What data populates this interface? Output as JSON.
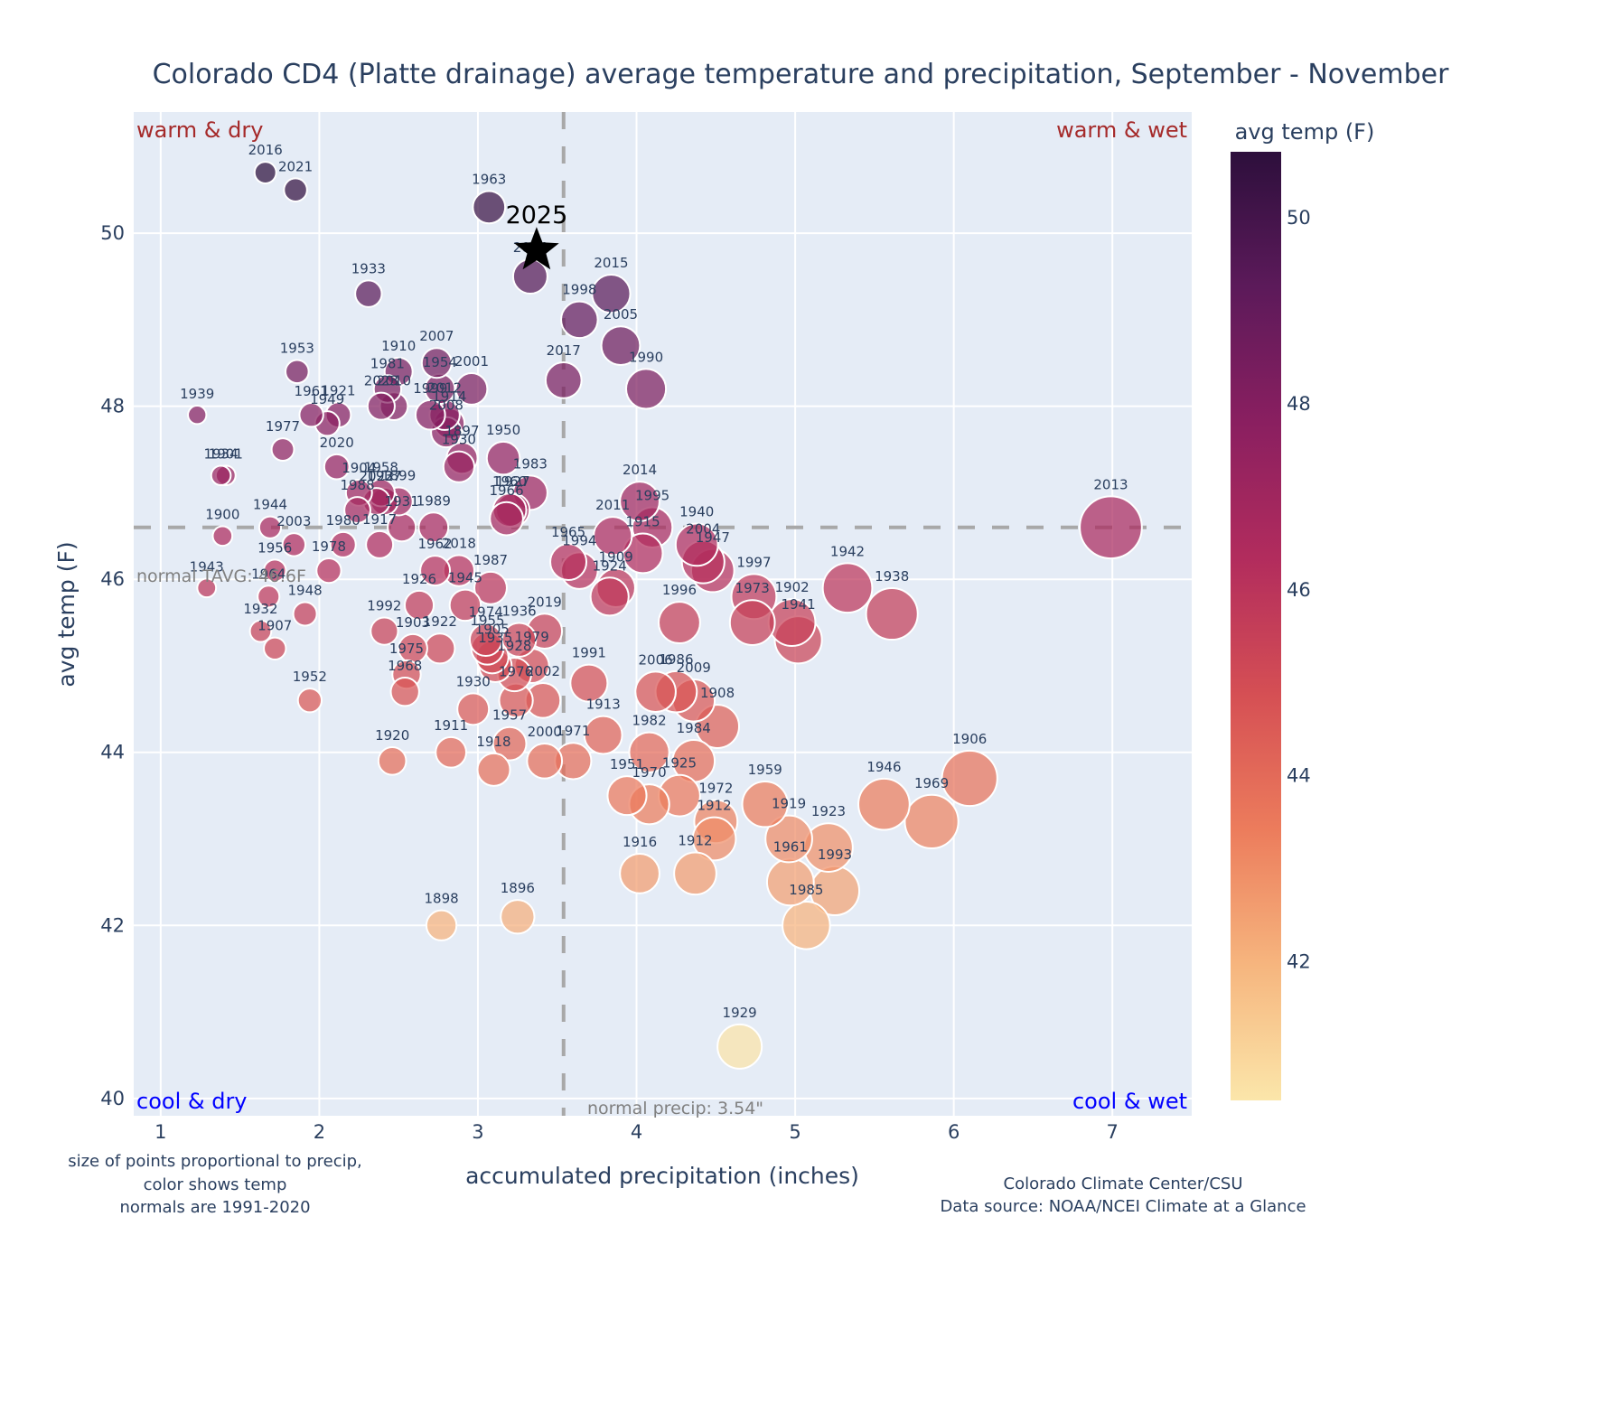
{
  "chart_data": {
    "type": "scatter",
    "title": "Colorado CD4 (Platte drainage) average temperature and precipitation, September - November",
    "xlabel": "accumulated precipitation (inches)",
    "ylabel": "avg temp (F)",
    "xlim": [
      0.83,
      7.5
    ],
    "ylim": [
      39.8,
      51.4
    ],
    "xticks": [
      1,
      2,
      3,
      4,
      5,
      6,
      7
    ],
    "yticks": [
      40,
      42,
      44,
      46,
      48,
      50
    ],
    "grid": true,
    "size_encodes": "precipitation",
    "color_encodes": "avg temp (F)",
    "colorbar": {
      "title": "avg temp (F)",
      "range": [
        40.5,
        50.7
      ],
      "ticks": [
        42,
        44,
        46,
        48,
        50
      ],
      "colorscale": [
        "#fbe6aa",
        "#f6b57e",
        "#ec7c5c",
        "#d54f54",
        "#b22c5d",
        "#8a1f60",
        "#5c1a5a",
        "#2d0f3c"
      ]
    },
    "normals": {
      "temp": 46.6,
      "temp_label": "normal TAVG: 46.6F",
      "precip": 3.54,
      "precip_label": "normal precip: 3.54\""
    },
    "quadrant_labels": {
      "top_left": "warm & dry",
      "top_right": "warm & wet",
      "bottom_left": "cool & dry",
      "bottom_right": "cool & wet"
    },
    "highlight": {
      "label": "2025",
      "x": 3.37,
      "y": 49.8,
      "marker": "star"
    },
    "points": [
      {
        "year": "2016",
        "x": 1.66,
        "y": 50.7
      },
      {
        "year": "2021",
        "x": 1.85,
        "y": 50.5
      },
      {
        "year": "1963",
        "x": 3.07,
        "y": 50.3
      },
      {
        "year": "2024",
        "x": 3.33,
        "y": 49.5
      },
      {
        "year": "1933",
        "x": 2.31,
        "y": 49.3
      },
      {
        "year": "2015",
        "x": 3.84,
        "y": 49.3
      },
      {
        "year": "1998",
        "x": 3.64,
        "y": 49.0
      },
      {
        "year": "2005",
        "x": 3.9,
        "y": 48.7
      },
      {
        "year": "1953",
        "x": 1.86,
        "y": 48.4
      },
      {
        "year": "1910",
        "x": 2.5,
        "y": 48.4
      },
      {
        "year": "2007",
        "x": 2.74,
        "y": 48.5
      },
      {
        "year": "2017",
        "x": 3.54,
        "y": 48.3
      },
      {
        "year": "1990",
        "x": 4.06,
        "y": 48.2
      },
      {
        "year": "1981",
        "x": 2.43,
        "y": 48.2
      },
      {
        "year": "2001",
        "x": 2.96,
        "y": 48.2
      },
      {
        "year": "1954",
        "x": 2.76,
        "y": 48.2
      },
      {
        "year": "2023",
        "x": 2.39,
        "y": 48.0
      },
      {
        "year": "2012",
        "x": 2.79,
        "y": 47.9
      },
      {
        "year": "1939",
        "x": 1.23,
        "y": 47.9
      },
      {
        "year": "1961",
        "x": 1.95,
        "y": 47.9
      },
      {
        "year": "1921",
        "x": 2.12,
        "y": 47.9
      },
      {
        "year": "1949",
        "x": 2.05,
        "y": 47.8
      },
      {
        "year": "2010",
        "x": 2.47,
        "y": 48.0
      },
      {
        "year": "1914",
        "x": 2.82,
        "y": 47.8
      },
      {
        "year": "1999",
        "x": 2.7,
        "y": 47.9
      },
      {
        "year": "2008",
        "x": 2.8,
        "y": 47.7
      },
      {
        "year": "1897",
        "x": 2.9,
        "y": 47.4
      },
      {
        "year": "1950",
        "x": 3.16,
        "y": 47.4
      },
      {
        "year": "1977",
        "x": 1.77,
        "y": 47.5
      },
      {
        "year": "1930a",
        "x": 2.88,
        "y": 47.3
      },
      {
        "year": "2020",
        "x": 2.11,
        "y": 47.3
      },
      {
        "year": "1934",
        "x": 1.38,
        "y": 47.2
      },
      {
        "year": "1901",
        "x": 1.41,
        "y": 47.2
      },
      {
        "year": "1983",
        "x": 3.33,
        "y": 47.0
      },
      {
        "year": "1958",
        "x": 2.39,
        "y": 47.0
      },
      {
        "year": "1904",
        "x": 2.25,
        "y": 47.0
      },
      {
        "year": "2022",
        "x": 2.36,
        "y": 46.9
      },
      {
        "year": "1937",
        "x": 2.41,
        "y": 46.9
      },
      {
        "year": "1899",
        "x": 2.5,
        "y": 46.9
      },
      {
        "year": "1927",
        "x": 3.22,
        "y": 46.8
      },
      {
        "year": "1960",
        "x": 3.2,
        "y": 46.8
      },
      {
        "year": "1966",
        "x": 3.18,
        "y": 46.7
      },
      {
        "year": "1988",
        "x": 2.24,
        "y": 46.8
      },
      {
        "year": "2014",
        "x": 4.02,
        "y": 46.9
      },
      {
        "year": "1995",
        "x": 4.1,
        "y": 46.6
      },
      {
        "year": "1931",
        "x": 2.52,
        "y": 46.6
      },
      {
        "year": "1989",
        "x": 2.72,
        "y": 46.6
      },
      {
        "year": "1900",
        "x": 1.39,
        "y": 46.5
      },
      {
        "year": "1944",
        "x": 1.69,
        "y": 46.6
      },
      {
        "year": "2003",
        "x": 1.84,
        "y": 46.4
      },
      {
        "year": "1980",
        "x": 2.15,
        "y": 46.4
      },
      {
        "year": "1917",
        "x": 2.38,
        "y": 46.4
      },
      {
        "year": "2011",
        "x": 3.85,
        "y": 46.5
      },
      {
        "year": "1915",
        "x": 4.04,
        "y": 46.3
      },
      {
        "year": "1940",
        "x": 4.38,
        "y": 46.4
      },
      {
        "year": "2004",
        "x": 4.42,
        "y": 46.2
      },
      {
        "year": "1947",
        "x": 4.48,
        "y": 46.1
      },
      {
        "year": "1965",
        "x": 3.57,
        "y": 46.2
      },
      {
        "year": "1994",
        "x": 3.64,
        "y": 46.1
      },
      {
        "year": "1909",
        "x": 3.87,
        "y": 45.9
      },
      {
        "year": "1924",
        "x": 3.83,
        "y": 45.8
      },
      {
        "year": "1962",
        "x": 2.73,
        "y": 46.1
      },
      {
        "year": "2018",
        "x": 2.88,
        "y": 46.1
      },
      {
        "year": "1956",
        "x": 1.72,
        "y": 46.1
      },
      {
        "year": "1978",
        "x": 2.06,
        "y": 46.1
      },
      {
        "year": "1964",
        "x": 1.68,
        "y": 45.8
      },
      {
        "year": "1943",
        "x": 1.29,
        "y": 45.9
      },
      {
        "year": "1987",
        "x": 3.08,
        "y": 45.9
      },
      {
        "year": "1997",
        "x": 4.74,
        "y": 45.8
      },
      {
        "year": "1942",
        "x": 5.33,
        "y": 45.9
      },
      {
        "year": "1938",
        "x": 5.61,
        "y": 45.6
      },
      {
        "year": "1926",
        "x": 2.63,
        "y": 45.7
      },
      {
        "year": "1945",
        "x": 2.92,
        "y": 45.7
      },
      {
        "year": "1948",
        "x": 1.91,
        "y": 45.6
      },
      {
        "year": "1996",
        "x": 4.27,
        "y": 45.5
      },
      {
        "year": "1973",
        "x": 4.73,
        "y": 45.5
      },
      {
        "year": "1902",
        "x": 4.98,
        "y": 45.5
      },
      {
        "year": "1941",
        "x": 5.02,
        "y": 45.3
      },
      {
        "year": "2019",
        "x": 3.42,
        "y": 45.4
      },
      {
        "year": "1932",
        "x": 1.63,
        "y": 45.4
      },
      {
        "year": "1992",
        "x": 2.41,
        "y": 45.4
      },
      {
        "year": "1974",
        "x": 3.05,
        "y": 45.3
      },
      {
        "year": "1936",
        "x": 3.26,
        "y": 45.3
      },
      {
        "year": "1907",
        "x": 1.72,
        "y": 45.2
      },
      {
        "year": "1903",
        "x": 2.59,
        "y": 45.2
      },
      {
        "year": "1922",
        "x": 2.76,
        "y": 45.2
      },
      {
        "year": "1955",
        "x": 3.06,
        "y": 45.2
      },
      {
        "year": "1905",
        "x": 3.09,
        "y": 45.1
      },
      {
        "year": "1979",
        "x": 3.34,
        "y": 45.0
      },
      {
        "year": "1975",
        "x": 2.55,
        "y": 44.9
      },
      {
        "year": "1935",
        "x": 3.11,
        "y": 45.0
      },
      {
        "year": "1928",
        "x": 3.23,
        "y": 44.9
      },
      {
        "year": "1991",
        "x": 3.7,
        "y": 44.8
      },
      {
        "year": "2006",
        "x": 4.12,
        "y": 44.7
      },
      {
        "year": "1986",
        "x": 4.25,
        "y": 44.7
      },
      {
        "year": "2009",
        "x": 4.36,
        "y": 44.6
      },
      {
        "year": "1968",
        "x": 2.54,
        "y": 44.7
      },
      {
        "year": "1952",
        "x": 1.94,
        "y": 44.6
      },
      {
        "year": "1930",
        "x": 2.97,
        "y": 44.5
      },
      {
        "year": "1976",
        "x": 3.24,
        "y": 44.6
      },
      {
        "year": "2002",
        "x": 3.41,
        "y": 44.6
      },
      {
        "year": "1913",
        "x": 3.79,
        "y": 44.2
      },
      {
        "year": "1908",
        "x": 4.51,
        "y": 44.3
      },
      {
        "year": "1982",
        "x": 4.08,
        "y": 44.0
      },
      {
        "year": "1984",
        "x": 4.36,
        "y": 43.9
      },
      {
        "year": "1971",
        "x": 3.6,
        "y": 43.9
      },
      {
        "year": "2000",
        "x": 3.42,
        "y": 43.9
      },
      {
        "year": "1957",
        "x": 3.2,
        "y": 44.1
      },
      {
        "year": "1911",
        "x": 2.83,
        "y": 44.0
      },
      {
        "year": "1920",
        "x": 2.46,
        "y": 43.9
      },
      {
        "year": "1918",
        "x": 3.1,
        "y": 43.8
      },
      {
        "year": "1951",
        "x": 3.94,
        "y": 43.5
      },
      {
        "year": "1970",
        "x": 4.08,
        "y": 43.4
      },
      {
        "year": "1925",
        "x": 4.27,
        "y": 43.5
      },
      {
        "year": "1972",
        "x": 4.5,
        "y": 43.2
      },
      {
        "year": "1959",
        "x": 4.81,
        "y": 43.4
      },
      {
        "year": "1946",
        "x": 5.56,
        "y": 43.4
      },
      {
        "year": "1906",
        "x": 6.1,
        "y": 43.7
      },
      {
        "year": "1969",
        "x": 5.86,
        "y": 43.2
      },
      {
        "year": "1919",
        "x": 4.96,
        "y": 43.0
      },
      {
        "year": "1923",
        "x": 5.21,
        "y": 42.9
      },
      {
        "year": "1912",
        "x": 4.49,
        "y": 43.0
      },
      {
        "year": "1961b",
        "x": 4.97,
        "y": 42.5
      },
      {
        "year": "1993",
        "x": 5.25,
        "y": 42.4
      },
      {
        "year": "1916",
        "x": 4.02,
        "y": 42.6
      },
      {
        "year": "1912b",
        "x": 4.37,
        "y": 42.6
      },
      {
        "year": "1985",
        "x": 5.07,
        "y": 42.0
      },
      {
        "year": "1896",
        "x": 3.25,
        "y": 42.1
      },
      {
        "year": "1898",
        "x": 2.77,
        "y": 42.0
      },
      {
        "year": "1929",
        "x": 4.65,
        "y": 40.6
      },
      {
        "year": "2013",
        "x": 6.99,
        "y": 46.6
      }
    ],
    "notes_left": [
      "size of points proportional to precip,",
      "color shows temp",
      "normals are 1991-2020"
    ],
    "notes_right": [
      "Colorado Climate Center/CSU",
      "Data source: NOAA/NCEI Climate at a Glance"
    ]
  }
}
